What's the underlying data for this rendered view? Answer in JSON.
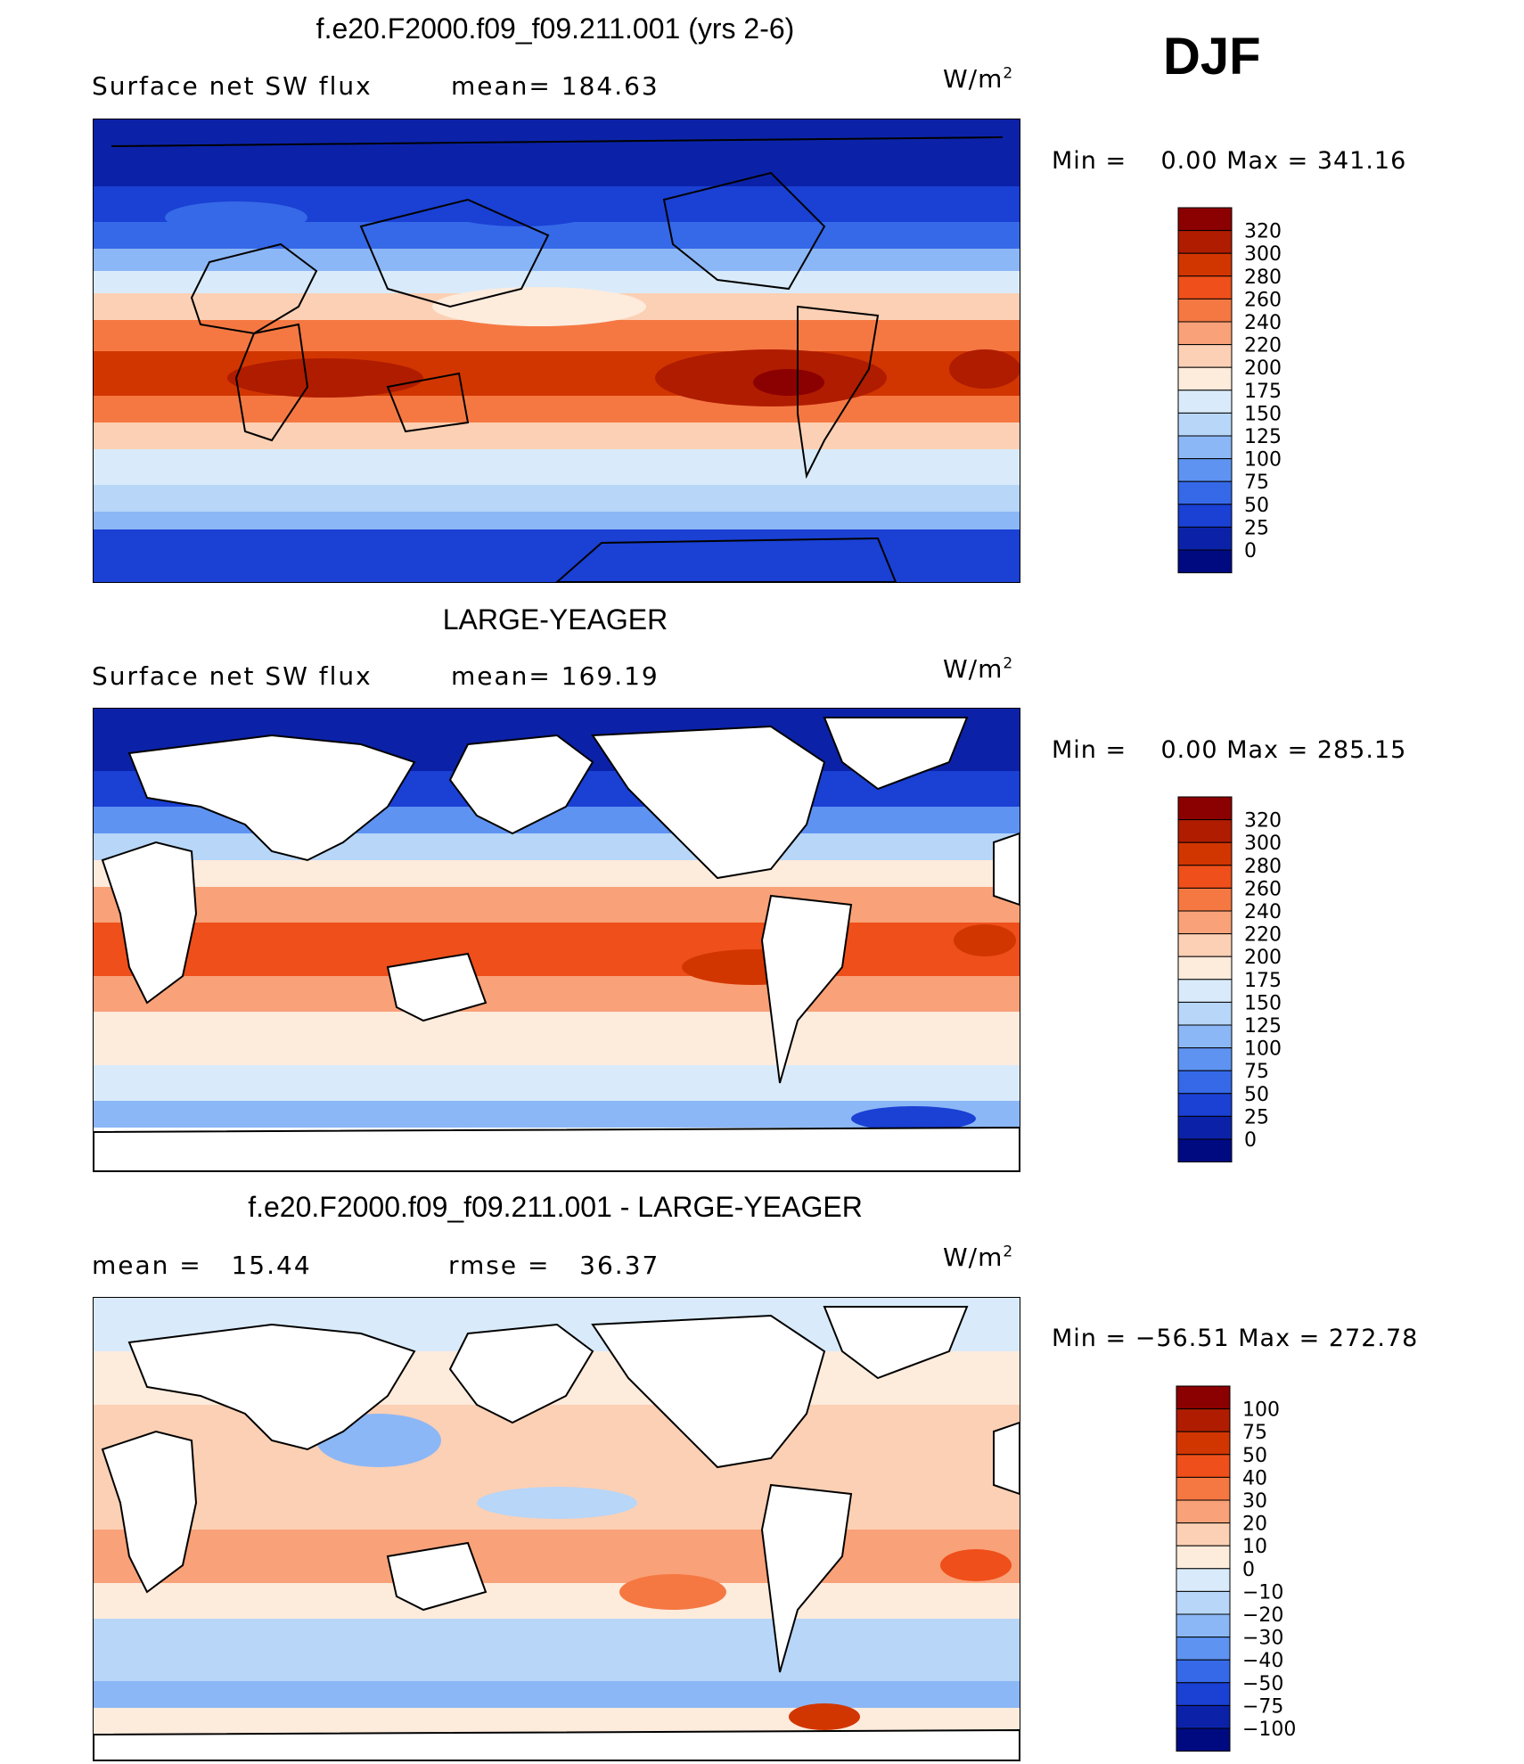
{
  "season": "DJF",
  "panels": [
    {
      "title": "f.e20.F2000.f09_f09.211.001 (yrs 2-6)",
      "left_label": "Surface net SW flux",
      "center_label": "mean= 184.63",
      "units_base": "W/m",
      "units_sup": "2",
      "min_text": "Min =",
      "min_value": "0.00",
      "max_text": "Max =",
      "max_value": "341.16",
      "land_masked": false,
      "colorbar": {
        "labels": [
          "320",
          "300",
          "280",
          "260",
          "240",
          "220",
          "200",
          "175",
          "150",
          "125",
          "100",
          "75",
          "50",
          "25",
          "0"
        ],
        "colors": [
          "#8b0000",
          "#b01c00",
          "#d23600",
          "#ef4f1a",
          "#f57842",
          "#f9a178",
          "#fcd0b4",
          "#fdebdc",
          "#d9ebfa",
          "#b7d6f8",
          "#8cb7f6",
          "#5e93f2",
          "#3569e8",
          "#1a40d4",
          "#0b22a8",
          "#000a80"
        ]
      }
    },
    {
      "title": "LARGE-YEAGER",
      "left_label": "Surface net SW flux",
      "center_label": "mean= 169.19",
      "units_base": "W/m",
      "units_sup": "2",
      "min_text": "Min =",
      "min_value": "0.00",
      "max_text": "Max =",
      "max_value": "285.15",
      "land_masked": true,
      "colorbar": {
        "labels": [
          "320",
          "300",
          "280",
          "260",
          "240",
          "220",
          "200",
          "175",
          "150",
          "125",
          "100",
          "75",
          "50",
          "25",
          "0"
        ],
        "colors": [
          "#8b0000",
          "#b01c00",
          "#d23600",
          "#ef4f1a",
          "#f57842",
          "#f9a178",
          "#fcd0b4",
          "#fdebdc",
          "#d9ebfa",
          "#b7d6f8",
          "#8cb7f6",
          "#5e93f2",
          "#3569e8",
          "#1a40d4",
          "#0b22a8",
          "#000a80"
        ]
      }
    },
    {
      "title": "f.e20.F2000.f09_f09.211.001 - LARGE-YEAGER",
      "left_label": "mean =   15.44",
      "center_label": "rmse =   36.37",
      "units_base": "W/m",
      "units_sup": "2",
      "min_text": "Min =",
      "min_value": "−56.51",
      "max_text": "Max =",
      "max_value": "272.78",
      "land_masked": true,
      "colorbar": {
        "labels": [
          "100",
          "75",
          "50",
          "40",
          "30",
          "20",
          "10",
          "0",
          "−10",
          "−20",
          "−30",
          "−40",
          "−50",
          "−75",
          "−100"
        ],
        "colors": [
          "#8b0000",
          "#b01c00",
          "#d23600",
          "#ef4f1a",
          "#f57842",
          "#f9a178",
          "#fcd0b4",
          "#fdebdc",
          "#d9ebfa",
          "#b7d6f8",
          "#8cb7f6",
          "#5e93f2",
          "#3569e8",
          "#1a40d4",
          "#0b22a8",
          "#000a80"
        ]
      }
    }
  ]
}
